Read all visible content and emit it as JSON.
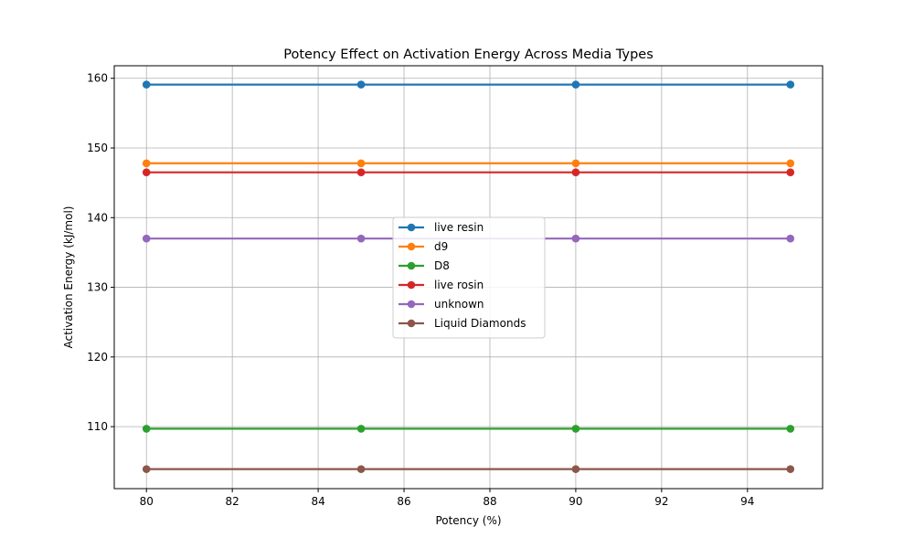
{
  "chart_data": {
    "type": "line",
    "title": "Potency Effect on Activation Energy Across Media Types",
    "xlabel": "Potency (%)",
    "ylabel": "Activation Energy (kJ/mol)",
    "x": [
      80,
      85,
      90,
      95
    ],
    "xlim": [
      79.25,
      95.75
    ],
    "ylim": [
      101.1,
      161.8
    ],
    "xticks": [
      80,
      82,
      84,
      86,
      88,
      90,
      92,
      94
    ],
    "yticks": [
      110,
      120,
      130,
      140,
      150,
      160
    ],
    "grid": true,
    "legend_position": "center",
    "series": [
      {
        "name": "live resin",
        "color": "#1f77b4",
        "values": [
          159.1,
          159.1,
          159.1,
          159.1
        ]
      },
      {
        "name": "d9",
        "color": "#ff7f0e",
        "values": [
          147.8,
          147.8,
          147.8,
          147.8
        ]
      },
      {
        "name": "D8",
        "color": "#2ca02c",
        "values": [
          109.7,
          109.7,
          109.7,
          109.7
        ]
      },
      {
        "name": "live rosin",
        "color": "#d62728",
        "values": [
          146.5,
          146.5,
          146.5,
          146.5
        ]
      },
      {
        "name": "unknown",
        "color": "#9467bd",
        "values": [
          137.0,
          137.0,
          137.0,
          137.0
        ]
      },
      {
        "name": "Liquid Diamonds",
        "color": "#8c564b",
        "values": [
          103.9,
          103.9,
          103.9,
          103.9
        ]
      }
    ]
  }
}
